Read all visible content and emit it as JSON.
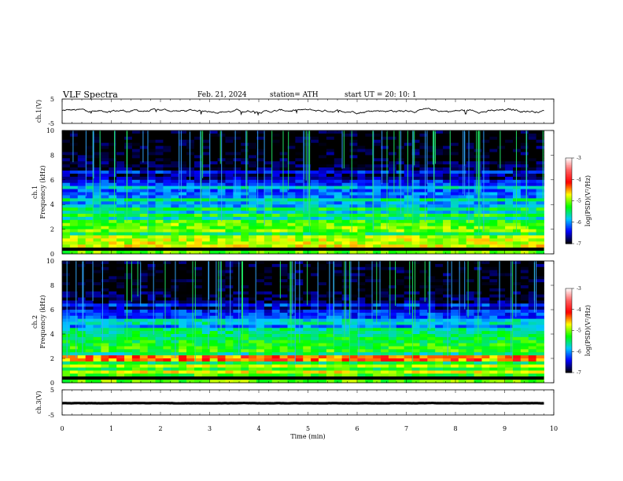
{
  "header": {
    "title": "VLF  Spectra",
    "date": "Feb. 21, 2024",
    "station": "station= ATH",
    "start": "start  UT  =    20: 10: 1"
  },
  "chart_data": [
    {
      "panel": "ch1-waveform",
      "type": "line",
      "ylabel": "ch.1(V)",
      "yticks": [
        "5",
        "-5"
      ],
      "ylim": [
        -5,
        5
      ],
      "xlim": [
        0,
        10
      ],
      "x_end": 9.8,
      "baseline": 0.2,
      "noise": 0.6,
      "line_color": "#000000"
    },
    {
      "panel": "ch1-spectrogram",
      "type": "heatmap",
      "ylabel_top": "ch.1",
      "ylabel": "Frequency  (kHz)",
      "yticks": [
        "10",
        "8",
        "6",
        "4",
        "2",
        "0"
      ],
      "ylim": [
        0,
        10
      ],
      "xlim": [
        0,
        10
      ],
      "x_end": 9.8,
      "colorbar": {
        "label": "log(PSD)(V²/Hz)",
        "ticks": [
          "-3",
          "-4",
          "-5",
          "-6",
          "-7"
        ],
        "range": [
          -7,
          -3
        ],
        "colors": [
          "#000000",
          "#0000ff",
          "#00c8ff",
          "#00ff00",
          "#ffff00",
          "#ff0000",
          "#ff6060",
          "#ffffff"
        ]
      },
      "bands_khz": [
        0.8,
        1.3,
        1.9,
        2.2,
        2.6,
        3.1,
        3.6,
        4.4,
        5.4,
        6.6
      ],
      "dominant_band_khz": 2.1,
      "dominant_level": -5.2
    },
    {
      "panel": "ch2-spectrogram",
      "type": "heatmap",
      "ylabel_top": "ch.2",
      "ylabel": "Frequency  (kHz)",
      "yticks": [
        "10",
        "8",
        "6",
        "4",
        "2",
        "0"
      ],
      "ylim": [
        0,
        10
      ],
      "xlim": [
        0,
        10
      ],
      "x_end": 9.8,
      "colorbar": {
        "label": "log(PSD)(V²/Hz)",
        "ticks": [
          "-3",
          "-4",
          "-5",
          "-6",
          "-7"
        ],
        "range": [
          -7,
          -3
        ],
        "colors": [
          "#000000",
          "#0000ff",
          "#00c8ff",
          "#00ff00",
          "#ffff00",
          "#ff0000",
          "#ff6060",
          "#ffffff"
        ]
      },
      "bands_khz": [
        0.9,
        1.4,
        1.9,
        2.1,
        2.7,
        3.3,
        3.7,
        4.3,
        5.0,
        6.4
      ],
      "dominant_band_khz": 2.0,
      "dominant_level": -4.4
    },
    {
      "panel": "ch3-waveform",
      "type": "line",
      "ylabel": "ch.3(V)",
      "yticks": [
        "5",
        "-5"
      ],
      "ylim": [
        -5,
        5
      ],
      "xlim": [
        0,
        10
      ],
      "x_end": 9.8,
      "baseline": -0.3,
      "noise": 0.05,
      "line_color": "#000000",
      "xlabel": "Time  (min)",
      "xticks": [
        "0",
        "1",
        "2",
        "3",
        "4",
        "5",
        "6",
        "7",
        "8",
        "9",
        "10"
      ]
    }
  ]
}
